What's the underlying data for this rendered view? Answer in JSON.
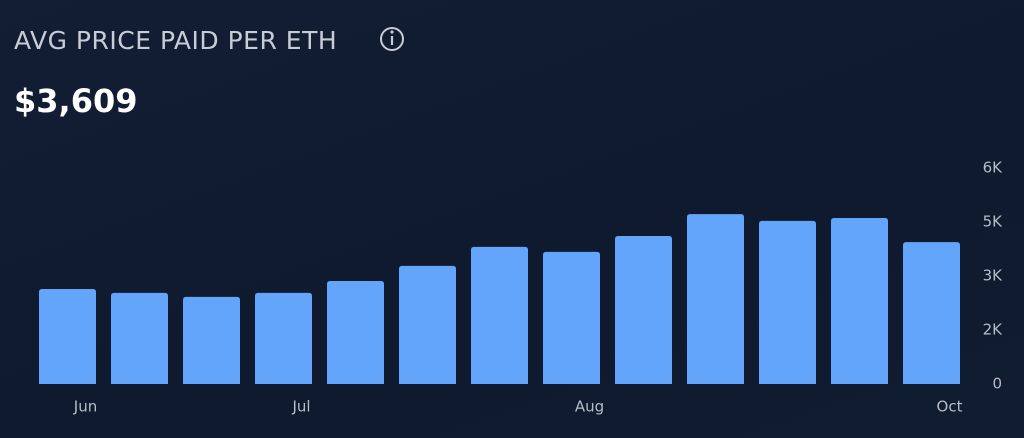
{
  "header": {
    "title": "AVG PRICE PAID PER ETH",
    "value": "$3,609"
  },
  "chart_data": {
    "type": "bar",
    "categories": [
      "Jun",
      null,
      null,
      "Jul",
      null,
      null,
      null,
      "Aug",
      null,
      null,
      null,
      null,
      "Oct"
    ],
    "values": [
      2640,
      2530,
      2420,
      2530,
      2860,
      3280,
      3810,
      3670,
      4110,
      4720,
      4530,
      4610,
      3940
    ],
    "color": "#62a5fb",
    "ylim": [
      0,
      6000
    ],
    "yticks": [
      0,
      {
        "value": 1500,
        "label": "2K"
      },
      {
        "value": 3000,
        "label": "3K"
      },
      {
        "value": 4500,
        "label": "5K"
      },
      {
        "value": 6000,
        "label": "6K"
      }
    ]
  }
}
